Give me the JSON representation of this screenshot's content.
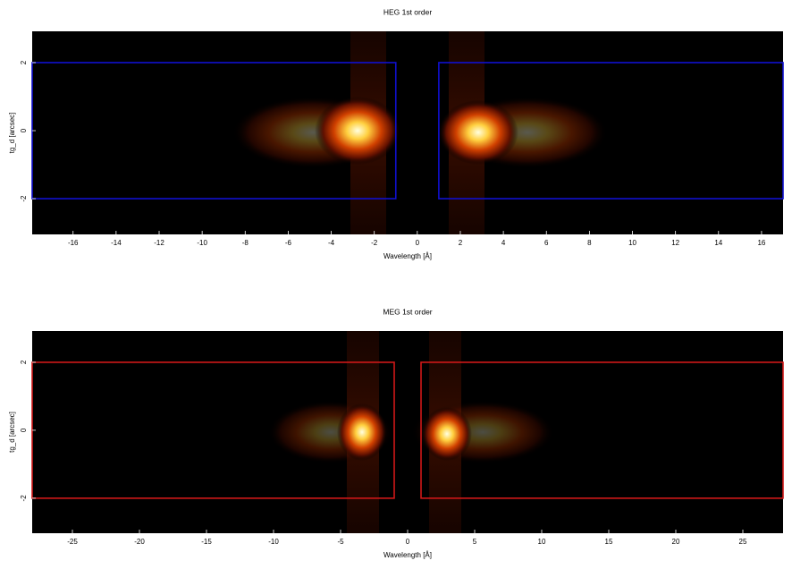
{
  "chart_data": [
    {
      "type": "image",
      "title": "HEG 1st order",
      "xlabel": "Wavelength [Å]",
      "ylabel": "tg_d [arcsec]",
      "xlim": [
        -17.9,
        17.0
      ],
      "ylim": [
        -3.05,
        2.92
      ],
      "xticks": [
        -16,
        -14,
        -12,
        -10,
        -8,
        -6,
        -4,
        -2,
        0,
        2,
        4,
        6,
        8,
        10,
        12,
        14,
        16
      ],
      "yticks": [
        -2,
        0,
        2
      ],
      "region_color": "#1010d0",
      "regions": [
        {
          "x": [
            -17.9,
            -1
          ],
          "y": [
            -2,
            2
          ]
        },
        {
          "x": [
            1,
            17.0
          ],
          "y": [
            -2,
            2
          ]
        }
      ]
    },
    {
      "type": "image",
      "title": "MEG 1st order",
      "xlabel": "Wavelength [Å]",
      "ylabel": "tg_d [arcsec]",
      "xlim": [
        -28,
        28
      ],
      "ylim": [
        -3.03,
        2.92
      ],
      "xticks": [
        -25,
        -20,
        -15,
        -10,
        -5,
        0,
        5,
        10,
        15,
        20,
        25
      ],
      "yticks": [
        -2,
        0,
        2
      ],
      "region_color": "#d01818",
      "regions": [
        {
          "x": [
            -28,
            -1
          ],
          "y": [
            -2,
            2
          ]
        },
        {
          "x": [
            1,
            28
          ],
          "y": [
            -2,
            2
          ]
        }
      ]
    }
  ]
}
